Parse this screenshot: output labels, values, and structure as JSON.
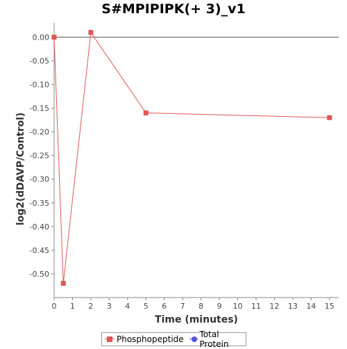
{
  "chart_data": {
    "type": "line",
    "title": "S#MPIPIPK(+ 3)_v1",
    "xlabel": "Time (minutes)",
    "ylabel": "log2(dDAVP/Control)",
    "xlim": [
      0,
      15.5
    ],
    "ylim": [
      -0.55,
      0.03
    ],
    "x_ticks": [
      0,
      1,
      2,
      3,
      4,
      5,
      6,
      7,
      8,
      9,
      10,
      11,
      12,
      13,
      14,
      15
    ],
    "y_ticks": [
      0.0,
      -0.05,
      -0.1,
      -0.15,
      -0.2,
      -0.25,
      -0.3,
      -0.35,
      -0.4,
      -0.45,
      -0.5
    ],
    "y_tick_labels": [
      "0.00",
      "-0.05",
      "-0.10",
      "-0.15",
      "-0.20",
      "-0.25",
      "-0.30",
      "-0.35",
      "-0.40",
      "-0.45",
      "-0.50"
    ],
    "grid": false,
    "zero_line": true,
    "legend_position": "bottom",
    "series": [
      {
        "name": "Phosphopeptide",
        "color": "#e05555",
        "marker": "square",
        "points": [
          {
            "x": 0,
            "y": 0.0
          },
          {
            "x": 0.5,
            "y": -0.52
          },
          {
            "x": 2,
            "y": 0.01
          },
          {
            "x": 5,
            "y": -0.16
          },
          {
            "x": 15,
            "y": -0.17
          }
        ]
      },
      {
        "name": "Total Protein",
        "color": "#5555e0",
        "marker": "circle",
        "points": []
      }
    ]
  }
}
